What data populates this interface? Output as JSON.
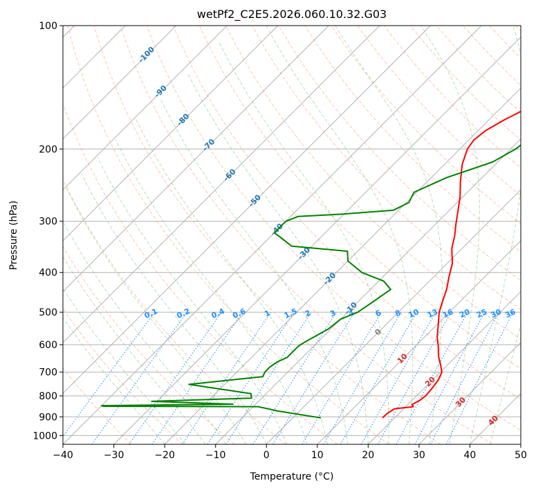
{
  "chart_data": {
    "type": "line",
    "title": "wetPf2_C2E5.2026.060.10.32.G03",
    "xlabel": "Temperature (°C)",
    "ylabel": "Pressure (hPa)",
    "xlim": [
      -40,
      50
    ],
    "ylim": [
      1050,
      100
    ],
    "y_scale": "log",
    "grid": true,
    "x_ticks": [
      -40,
      -30,
      -20,
      -10,
      0,
      10,
      20,
      30,
      40,
      50
    ],
    "y_ticks": [
      100,
      200,
      300,
      400,
      500,
      600,
      700,
      800,
      900,
      1000
    ],
    "isotherm_labels": [
      -100,
      -90,
      -80,
      -70,
      -60,
      -50,
      -40,
      -30,
      -20,
      -10,
      0,
      10,
      20,
      30,
      40
    ],
    "mixing_ratio_labels": [
      "0.1",
      "0.2",
      "0.4",
      "0.6",
      "1",
      "1.5",
      "2",
      "3",
      "4",
      "6",
      "8",
      "10",
      "13",
      "16",
      "20",
      "25",
      "30",
      "36"
    ],
    "colors": {
      "temperature": "#ff0000",
      "dewpoint": "#008000",
      "isotherm_label_cold": "#1f77b4",
      "isotherm_label_warm": "#d62728",
      "isotherm_zero": "#7f7f7f",
      "mixing_ratio": "#1e90ff",
      "dry_adiabat": "#ff7f50",
      "moist_adiabat": "#2ca02c",
      "grid": "#b0b0b0"
    },
    "series": [
      {
        "name": "Temperature",
        "points": [
          [
            17.6,
            905
          ],
          [
            17.7,
            880
          ],
          [
            18.2,
            860
          ],
          [
            21.5,
            850
          ],
          [
            20.8,
            840
          ],
          [
            21.5,
            820
          ],
          [
            21.8,
            800
          ],
          [
            21.5,
            760
          ],
          [
            21.1,
            730
          ],
          [
            20.3,
            700
          ],
          [
            18.5,
            670
          ],
          [
            16.5,
            640
          ],
          [
            14.5,
            605
          ],
          [
            12.5,
            575
          ],
          [
            10.5,
            540
          ],
          [
            8.0,
            500
          ],
          [
            6.5,
            470
          ],
          [
            5.0,
            440
          ],
          [
            3.0,
            410
          ],
          [
            1.0,
            380
          ],
          [
            -2.0,
            350
          ],
          [
            -4.0,
            325
          ],
          [
            -6.0,
            305
          ],
          [
            -8.0,
            285
          ],
          [
            -10.5,
            262
          ],
          [
            -13.5,
            240
          ],
          [
            -16.5,
            218
          ],
          [
            -18.5,
            200
          ],
          [
            -19.0,
            190
          ],
          [
            -18.5,
            180
          ],
          [
            -17.0,
            170
          ],
          [
            -15.0,
            160
          ],
          [
            -14.5,
            150
          ],
          [
            -15.5,
            140
          ],
          [
            -16.0,
            130
          ],
          [
            -16.5,
            120
          ],
          [
            -17.0,
            110
          ],
          [
            -17.5,
            100
          ]
        ]
      },
      {
        "name": "Dewpoint",
        "points": [
          [
            5.5,
            905
          ],
          [
            -4.5,
            870
          ],
          [
            -9.0,
            850
          ],
          [
            -39.5,
            848
          ],
          [
            -40,
            845
          ],
          [
            -14.5,
            838
          ],
          [
            -31.0,
            825
          ],
          [
            -12.0,
            810
          ],
          [
            -13.0,
            790
          ],
          [
            -27.0,
            750
          ],
          [
            -17.0,
            725
          ],
          [
            -14.0,
            718
          ],
          [
            -14.5,
            700
          ],
          [
            -14.5,
            680
          ],
          [
            -14.0,
            660
          ],
          [
            -13.0,
            645
          ],
          [
            -13.0,
            625
          ],
          [
            -13.0,
            605
          ],
          [
            -12.5,
            590
          ],
          [
            -11.5,
            570
          ],
          [
            -10.5,
            550
          ],
          [
            -10.0,
            520
          ],
          [
            -8.0,
            500
          ],
          [
            -7.0,
            470
          ],
          [
            -6.0,
            440
          ],
          [
            -9.0,
            420
          ],
          [
            -15.0,
            400
          ],
          [
            -20.0,
            375
          ],
          [
            -22.0,
            355
          ],
          [
            -34.0,
            345
          ],
          [
            -37.5,
            330
          ],
          [
            -40,
            320
          ],
          [
            -40,
            300
          ],
          [
            -38.5,
            292
          ],
          [
            -30.0,
            288
          ],
          [
            -21.0,
            282
          ],
          [
            -19.5,
            270
          ],
          [
            -20.5,
            255
          ],
          [
            -17.0,
            235
          ],
          [
            -11.0,
            215
          ],
          [
            -9.0,
            200
          ],
          [
            -8.5,
            190
          ],
          [
            -9.0,
            180
          ],
          [
            -9.5,
            170
          ],
          [
            -7.5,
            160
          ],
          [
            -5.5,
            150
          ],
          [
            -2.5,
            130
          ],
          [
            1.5,
            110
          ],
          [
            3.5,
            100
          ]
        ]
      }
    ]
  }
}
